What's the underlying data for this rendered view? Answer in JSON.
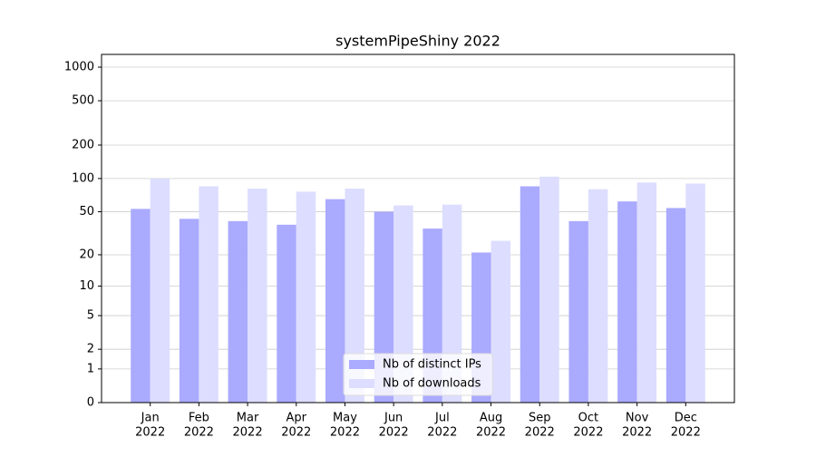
{
  "chart_data": {
    "type": "bar",
    "title": "systemPipeShiny 2022",
    "categories": [
      [
        "Jan",
        "2022"
      ],
      [
        "Feb",
        "2022"
      ],
      [
        "Mar",
        "2022"
      ],
      [
        "Apr",
        "2022"
      ],
      [
        "May",
        "2022"
      ],
      [
        "Jun",
        "2022"
      ],
      [
        "Jul",
        "2022"
      ],
      [
        "Aug",
        "2022"
      ],
      [
        "Sep",
        "2022"
      ],
      [
        "Oct",
        "2022"
      ],
      [
        "Nov",
        "2022"
      ],
      [
        "Dec",
        "2022"
      ]
    ],
    "series": [
      {
        "name": "Nb of distinct IPs",
        "color": "#aaaaff",
        "values": [
          53,
          43,
          41,
          38,
          65,
          50,
          35,
          21,
          85,
          41,
          62,
          54
        ]
      },
      {
        "name": "Nb of downloads",
        "color": "#ddddff",
        "values": [
          100,
          85,
          81,
          76,
          81,
          57,
          58,
          27,
          104,
          80,
          92,
          90
        ]
      }
    ],
    "yscale": "log1p",
    "ylim": [
      0,
      1300
    ],
    "yticks": [
      0,
      1,
      2,
      5,
      10,
      20,
      50,
      100,
      200,
      500,
      1000
    ],
    "grid": true,
    "legend": "lower center"
  }
}
